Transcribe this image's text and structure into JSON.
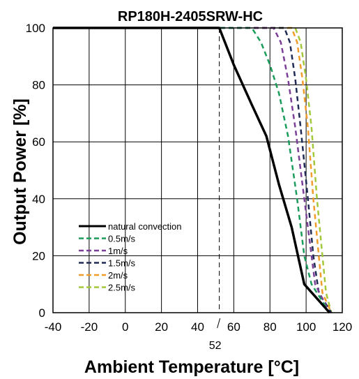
{
  "chart_data": {
    "type": "line",
    "title": "RP180H-2405SRW-HC",
    "xlabel": "Ambient Temperature [°C]",
    "ylabel": "Output Power [%]",
    "xlim": [
      -40,
      120
    ],
    "ylim": [
      0,
      100
    ],
    "xticks": [
      -40,
      -20,
      0,
      20,
      40,
      60,
      80,
      100,
      120
    ],
    "yticks": [
      0,
      20,
      40,
      60,
      80,
      100
    ],
    "grid": true,
    "legend_position": "lower-left",
    "annotation": {
      "label": "52",
      "x": 52
    },
    "series": [
      {
        "name": "natural convection",
        "color": "#000000",
        "dashed": false,
        "points": [
          [
            -40,
            100
          ],
          [
            52,
            100
          ],
          [
            60,
            87
          ],
          [
            70,
            73
          ],
          [
            78,
            62
          ],
          [
            85,
            45
          ],
          [
            92,
            30
          ],
          [
            99,
            10
          ],
          [
            113,
            0
          ]
        ]
      },
      {
        "name": "0.5m/s",
        "color": "#1a9c5b",
        "dashed": true,
        "points": [
          [
            -40,
            100
          ],
          [
            70,
            100
          ],
          [
            75,
            95
          ],
          [
            80,
            87
          ],
          [
            85,
            77
          ],
          [
            90,
            62
          ],
          [
            95,
            40
          ],
          [
            99,
            20
          ],
          [
            103,
            10
          ],
          [
            113,
            0
          ]
        ]
      },
      {
        "name": "1m/s",
        "color": "#7b3f98",
        "dashed": true,
        "points": [
          [
            -40,
            100
          ],
          [
            82,
            100
          ],
          [
            86,
            95
          ],
          [
            90,
            82
          ],
          [
            94,
            65
          ],
          [
            98,
            45
          ],
          [
            102,
            25
          ],
          [
            105,
            10
          ],
          [
            113,
            0
          ]
        ]
      },
      {
        "name": "1.5m/s",
        "color": "#1f2a55",
        "dashed": true,
        "points": [
          [
            -40,
            100
          ],
          [
            88,
            100
          ],
          [
            91,
            95
          ],
          [
            94,
            82
          ],
          [
            97,
            65
          ],
          [
            101,
            40
          ],
          [
            104,
            20
          ],
          [
            107,
            7
          ],
          [
            114,
            0
          ]
        ]
      },
      {
        "name": "2m/s",
        "color": "#f29c2b",
        "dashed": true,
        "points": [
          [
            -40,
            100
          ],
          [
            92,
            100
          ],
          [
            95,
            95
          ],
          [
            98,
            82
          ],
          [
            101,
            65
          ],
          [
            104,
            40
          ],
          [
            107,
            20
          ],
          [
            109,
            7
          ],
          [
            114,
            0
          ]
        ]
      },
      {
        "name": "2.5m/s",
        "color": "#a3c83a",
        "dashed": true,
        "points": [
          [
            -40,
            100
          ],
          [
            94,
            100
          ],
          [
            97,
            95
          ],
          [
            100,
            82
          ],
          [
            103,
            65
          ],
          [
            106,
            40
          ],
          [
            109,
            20
          ],
          [
            111,
            7
          ],
          [
            114,
            0
          ]
        ]
      }
    ]
  }
}
